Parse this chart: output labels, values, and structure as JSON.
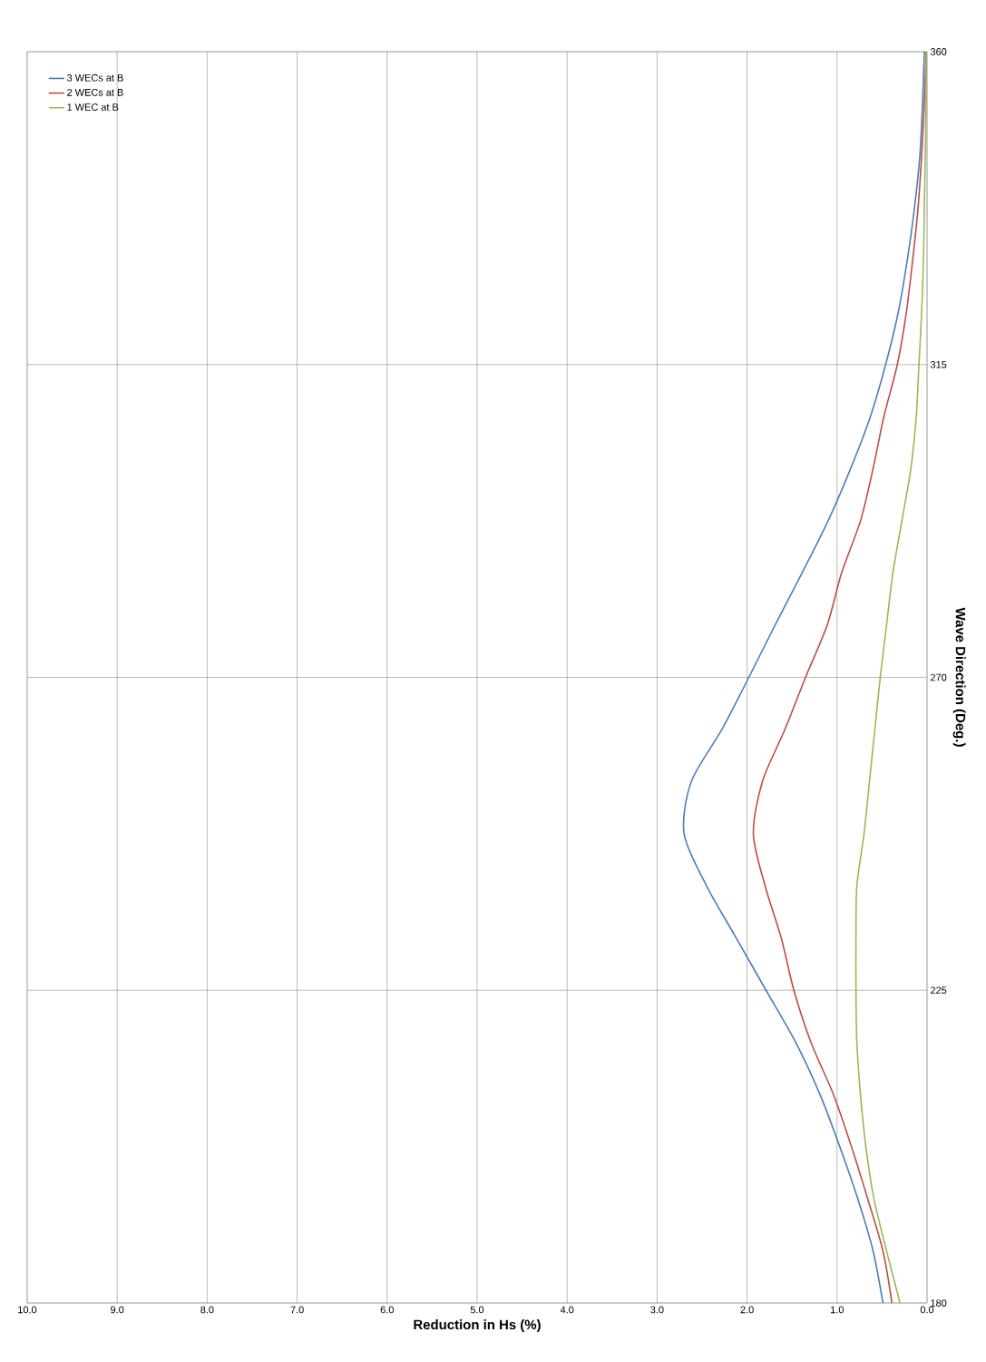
{
  "chart_data": {
    "type": "line",
    "xlabel": "Reduction in Hs (%)",
    "ylabel": "Wave Direction (Deg.)",
    "series": [
      {
        "name": "3 WECs at B",
        "color": "#4a7ebb",
        "x": [
          0.49,
          0.6,
          0.77,
          0.97,
          1.19,
          1.46,
          1.79,
          2.12,
          2.45,
          2.7,
          2.62,
          2.28,
          1.98,
          1.69,
          1.39,
          1.1,
          0.85,
          0.63,
          0.46,
          0.32,
          0.22,
          0.14,
          0.08,
          0.05,
          0.03
        ],
        "values": [
          180,
          187.5,
          195,
          202.5,
          210,
          217.5,
          225,
          232.5,
          240,
          247.5,
          255,
          262.5,
          270,
          277.5,
          285,
          292.5,
          300,
          307.5,
          315,
          322.5,
          330,
          337.5,
          345,
          352.5,
          360
        ]
      },
      {
        "name": "2 WECs at B",
        "color": "#be4b48",
        "x": [
          0.39,
          0.49,
          0.66,
          0.84,
          1.04,
          1.29,
          1.48,
          1.62,
          1.8,
          1.93,
          1.83,
          1.58,
          1.35,
          1.11,
          0.95,
          0.74,
          0.6,
          0.48,
          0.33,
          0.23,
          0.16,
          0.1,
          0.06,
          0.03,
          0.01
        ],
        "values": [
          180,
          187.5,
          195,
          202.5,
          210,
          217.5,
          225,
          232.5,
          240,
          247.5,
          255,
          262.5,
          270,
          277.5,
          285,
          292.5,
          300,
          307.5,
          315,
          322.5,
          330,
          337.5,
          345,
          352.5,
          360
        ]
      },
      {
        "name": "1 WEC at B",
        "color": "#98b954",
        "x": [
          0.3,
          0.45,
          0.59,
          0.68,
          0.74,
          0.78,
          0.79,
          0.79,
          0.78,
          0.7,
          0.64,
          0.58,
          0.52,
          0.45,
          0.38,
          0.28,
          0.18,
          0.12,
          0.09,
          0.06,
          0.04,
          0.03,
          0.02,
          0.01,
          0.01
        ],
        "values": [
          180,
          187.5,
          195,
          202.5,
          210,
          217.5,
          225,
          232.5,
          240,
          247.5,
          255,
          262.5,
          270,
          277.5,
          285,
          292.5,
          300,
          307.5,
          315,
          322.5,
          330,
          337.5,
          345,
          352.5,
          360
        ]
      }
    ],
    "xlim": [
      10,
      0
    ],
    "xticks": [
      {
        "value": 10,
        "label": "10.0"
      },
      {
        "value": 9,
        "label": "9.0"
      },
      {
        "value": 8,
        "label": "8.0"
      },
      {
        "value": 7,
        "label": "7.0"
      },
      {
        "value": 6,
        "label": "6.0"
      },
      {
        "value": 5,
        "label": "5.0"
      },
      {
        "value": 4,
        "label": "4.0"
      },
      {
        "value": 3,
        "label": "3.0"
      },
      {
        "value": 2,
        "label": "2.0"
      },
      {
        "value": 1,
        "label": "1.0"
      },
      {
        "value": 0,
        "label": "0.0"
      }
    ],
    "ylim": [
      180,
      360
    ],
    "yticks": [
      180,
      225,
      270,
      315,
      360
    ],
    "grid": true,
    "legend": "top left"
  }
}
